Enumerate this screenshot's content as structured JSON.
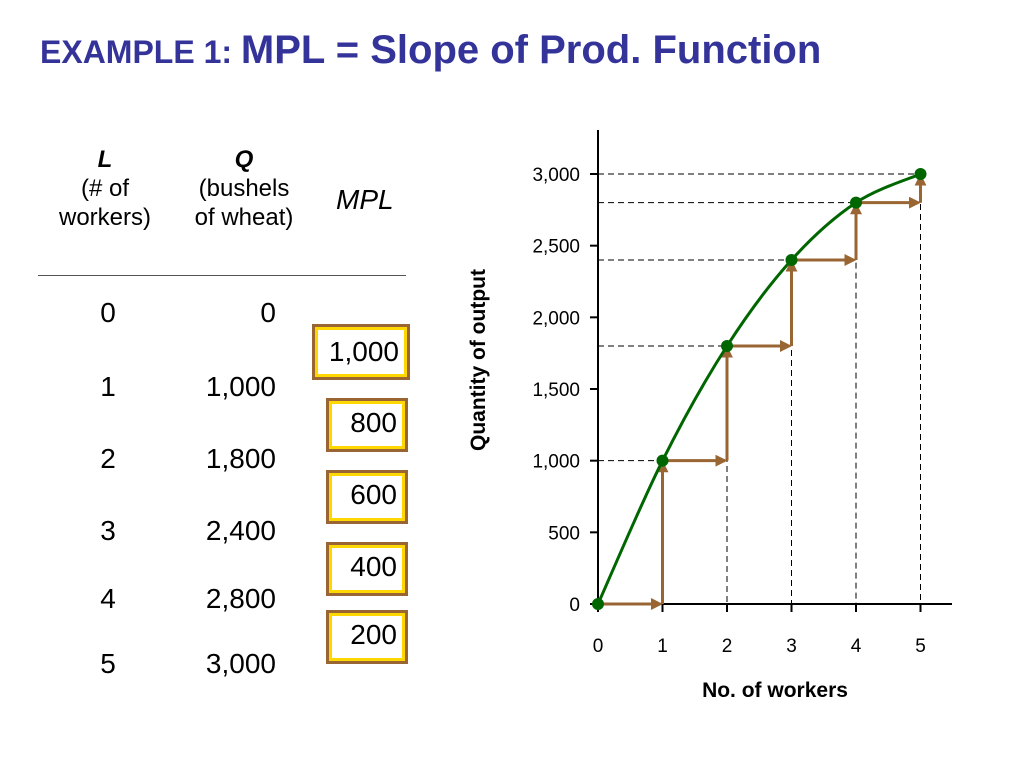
{
  "title": {
    "lead": "EXAMPLE 1: ",
    "main": "MPL = Slope of Prod. Function"
  },
  "table": {
    "header_l": {
      "symbol": "L",
      "line1": "(# of",
      "line2": "workers)"
    },
    "header_q": {
      "symbol": "Q",
      "line1": "(bushels",
      "line2": "of wheat)"
    },
    "header_mpl": "MPL",
    "rows": [
      {
        "l": "0",
        "q": "0"
      },
      {
        "l": "1",
        "q": "1,000"
      },
      {
        "l": "2",
        "q": "1,800"
      },
      {
        "l": "3",
        "q": "2,400"
      },
      {
        "l": "4",
        "q": "2,800"
      },
      {
        "l": "5",
        "q": "3,000"
      }
    ],
    "mpl": [
      "1,000",
      "800",
      "600",
      "400",
      "200"
    ]
  },
  "colors": {
    "title": "#333399",
    "curve": "#006600",
    "arrow": "#996633",
    "box_border": "#996633",
    "box_inner": "#ffd700"
  },
  "chart_data": {
    "type": "line",
    "x": [
      0,
      1,
      2,
      3,
      4,
      5
    ],
    "y": [
      0,
      1000,
      1800,
      2400,
      2800,
      3000
    ],
    "xlabel": "No. of workers",
    "ylabel": "Quantity of output",
    "xlim": [
      0,
      5.5
    ],
    "ylim": [
      0,
      3000
    ],
    "x_ticks": [
      "0",
      "1",
      "2",
      "3",
      "4",
      "5"
    ],
    "y_ticks": [
      {
        "value": 0,
        "label": "0"
      },
      {
        "value": 500,
        "label": "500"
      },
      {
        "value": 1000,
        "label": "1,000"
      },
      {
        "value": 1500,
        "label": "1,500"
      },
      {
        "value": 2000,
        "label": "2,000"
      },
      {
        "value": 2500,
        "label": "2,500"
      },
      {
        "value": 3000,
        "label": "3,000"
      }
    ],
    "guide_lines": "dashed",
    "step_arrows": true
  }
}
